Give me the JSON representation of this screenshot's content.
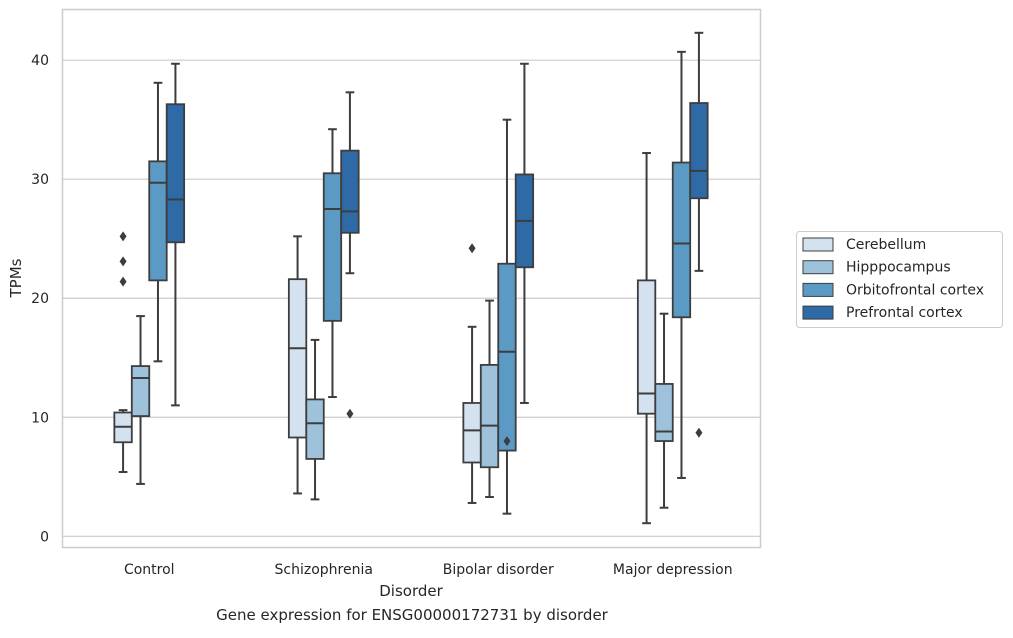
{
  "chart_data": {
    "type": "box",
    "xlabel": "Disorder",
    "ylabel": "TPMs",
    "caption": "Gene expression for ENSG00000172731 by disorder",
    "ylim": [
      -0.9,
      44.3
    ],
    "yticks": [
      0,
      10,
      20,
      30,
      40
    ],
    "grid": "horizontal",
    "legend_position": "right",
    "categories": [
      "Control",
      "Schizophrenia",
      "Bipolar disorder",
      "Major depression"
    ],
    "series": [
      {
        "name": "Cerebellum",
        "color": "#d4e2f0",
        "boxes": [
          {
            "whisker_low": 5.4,
            "q1": 7.9,
            "median": 9.2,
            "q3": 10.4,
            "whisker_high": 10.6,
            "outliers": [
              21.4,
              23.1,
              25.2
            ]
          },
          {
            "whisker_low": 3.6,
            "q1": 8.3,
            "median": 15.8,
            "q3": 21.6,
            "whisker_high": 25.2,
            "outliers": []
          },
          {
            "whisker_low": 2.8,
            "q1": 6.2,
            "median": 8.9,
            "q3": 11.2,
            "whisker_high": 17.6,
            "outliers": [
              24.2
            ]
          },
          {
            "whisker_low": 1.1,
            "q1": 10.3,
            "median": 12.0,
            "q3": 21.5,
            "whisker_high": 32.2,
            "outliers": []
          }
        ]
      },
      {
        "name": "Hipppocampus",
        "color": "#9fc2dc",
        "boxes": [
          {
            "whisker_low": 4.4,
            "q1": 10.1,
            "median": 13.3,
            "q3": 14.3,
            "whisker_high": 18.5,
            "outliers": []
          },
          {
            "whisker_low": 3.1,
            "q1": 6.5,
            "median": 9.5,
            "q3": 11.5,
            "whisker_high": 16.5,
            "outliers": []
          },
          {
            "whisker_low": 3.3,
            "q1": 5.8,
            "median": 9.3,
            "q3": 14.4,
            "whisker_high": 19.8,
            "outliers": []
          },
          {
            "whisker_low": 2.4,
            "q1": 8.0,
            "median": 8.8,
            "q3": 12.8,
            "whisker_high": 18.7,
            "outliers": []
          }
        ]
      },
      {
        "name": "Orbitofrontal cortex",
        "color": "#5b9ac5",
        "boxes": [
          {
            "whisker_low": 14.7,
            "q1": 21.5,
            "median": 29.7,
            "q3": 31.5,
            "whisker_high": 38.1,
            "outliers": []
          },
          {
            "whisker_low": 11.7,
            "q1": 18.1,
            "median": 27.5,
            "q3": 30.5,
            "whisker_high": 34.2,
            "outliers": []
          },
          {
            "whisker_low": 1.9,
            "q1": 7.2,
            "median": 15.5,
            "q3": 22.9,
            "whisker_high": 35.0,
            "outliers": [
              8.0
            ]
          },
          {
            "whisker_low": 4.9,
            "q1": 18.4,
            "median": 24.6,
            "q3": 31.4,
            "whisker_high": 40.7,
            "outliers": []
          }
        ]
      },
      {
        "name": "Prefrontal cortex",
        "color": "#2e6aa5",
        "boxes": [
          {
            "whisker_low": 11.0,
            "q1": 24.7,
            "median": 28.3,
            "q3": 36.3,
            "whisker_high": 39.7,
            "outliers": []
          },
          {
            "whisker_low": 22.1,
            "q1": 25.5,
            "median": 27.3,
            "q3": 32.4,
            "whisker_high": 37.3,
            "outliers": [
              10.3
            ]
          },
          {
            "whisker_low": 11.2,
            "q1": 22.6,
            "median": 26.5,
            "q3": 30.4,
            "whisker_high": 39.7,
            "outliers": []
          },
          {
            "whisker_low": 22.3,
            "q1": 28.4,
            "median": 30.7,
            "q3": 36.4,
            "whisker_high": 42.3,
            "outliers": [
              8.7
            ]
          }
        ]
      }
    ]
  }
}
